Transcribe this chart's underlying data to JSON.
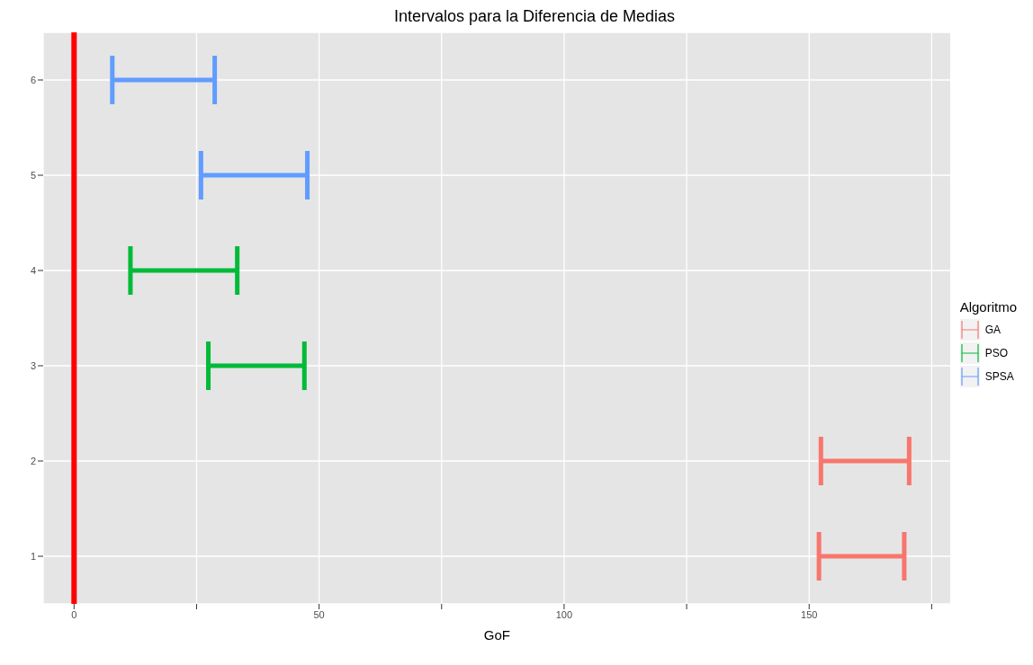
{
  "chart_data": {
    "type": "bar",
    "orientation": "horizontal",
    "title": "Intervalos para la Diferencia de Medias",
    "xlabel": "GoF",
    "legend_title": "Algoritmo",
    "legend": "right",
    "grid": true,
    "categories": [
      "6",
      "5",
      "4",
      "3",
      "2",
      "1"
    ],
    "xlim": [
      -6.3,
      178.9
    ],
    "xticks": [
      0,
      {
        "value": 25,
        "label": null
      },
      50,
      {
        "value": 75,
        "label": null
      },
      100,
      {
        "value": 125,
        "label": null
      },
      150,
      {
        "value": 175,
        "label": null
      }
    ],
    "ref_lines": [
      {
        "axis": "x",
        "value": 0,
        "color": "#ff0000"
      }
    ],
    "series": [
      {
        "name": "GA",
        "color": "#f8766d",
        "base": [
          null,
          null,
          null,
          null,
          152.4,
          152.0
        ],
        "values": [
          null,
          null,
          null,
          null,
          18.0,
          17.4
        ]
      },
      {
        "name": "PSO",
        "color": "#00ba38",
        "base": [
          null,
          null,
          11.5,
          27.4,
          null,
          null
        ],
        "values": [
          null,
          null,
          21.8,
          19.6,
          null,
          null
        ]
      },
      {
        "name": "SPSA",
        "color": "#619cff",
        "base": [
          7.8,
          25.9,
          null,
          null,
          null,
          null
        ],
        "values": [
          20.9,
          21.7,
          null,
          null,
          null,
          null
        ]
      }
    ]
  }
}
